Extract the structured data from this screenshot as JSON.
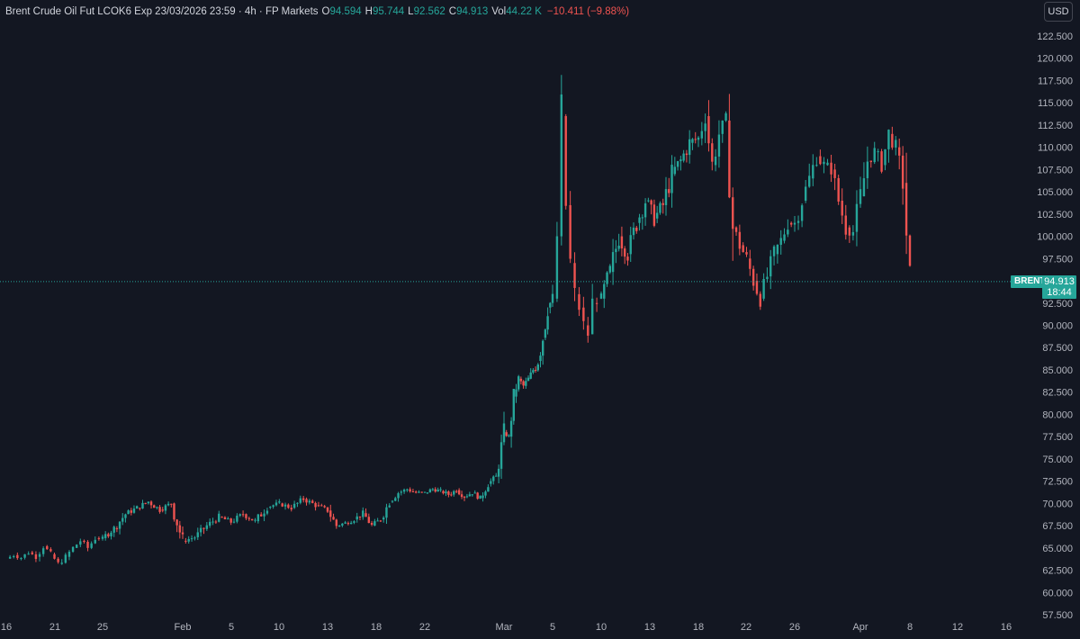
{
  "legend": {
    "title": "Brent Crude Oil Fut LCOK6 Exp 23/03/2026 23:59 · 4h · FP Markets",
    "open_label": "O",
    "open": "94.594",
    "high_label": "H",
    "high": "95.744",
    "low_label": "L",
    "low": "92.562",
    "close_label": "C",
    "close": "94.913",
    "vol_label": "Vol",
    "vol": "44.22 K",
    "change": "−10.411 (−9.88%)"
  },
  "currency": "USD",
  "last_price": {
    "symbol": "BRENT",
    "price": "94.913",
    "countdown": "18:44"
  },
  "colors": {
    "background": "#131722",
    "up": "#26a69a",
    "down": "#ef5350",
    "grid": "#1e222d",
    "text": "#d1d4dc"
  },
  "event_icons": [
    "us-flag-icon",
    "us-flag-icon",
    "us-flag-icon",
    "us-flag-icon"
  ],
  "chart_data": {
    "type": "candlestick",
    "y_ticks": [
      "122.500",
      "120.000",
      "117.500",
      "115.000",
      "112.500",
      "110.000",
      "107.500",
      "105.000",
      "102.500",
      "100.000",
      "97.500",
      "95.000",
      "92.500",
      "90.000",
      "87.500",
      "85.000",
      "82.500",
      "80.000",
      "77.500",
      "75.000",
      "72.500",
      "70.000",
      "67.500",
      "65.000",
      "62.500",
      "60.000",
      "57.500"
    ],
    "ylim": [
      57.5,
      122.5
    ],
    "x_ticks": [
      "16",
      "21",
      "25",
      "Feb",
      "5",
      "10",
      "13",
      "18",
      "22",
      "Mar",
      "5",
      "10",
      "13",
      "18",
      "22",
      "26",
      "Apr",
      "8",
      "12",
      "16"
    ],
    "last_price": 94.913,
    "segments": [
      {
        "from": "16",
        "to": "25",
        "values": [
          63.8,
          64.2,
          63.9,
          64.5,
          64.0,
          65.2,
          64.3,
          63.2,
          64.0,
          65.0,
          65.8,
          65.0,
          66.1
        ]
      },
      {
        "from": "25",
        "to": "Feb",
        "values": [
          66.1,
          67.2,
          68.8,
          69.5,
          70.2,
          69.3,
          70.0
        ]
      },
      {
        "from": "Feb",
        "to": "13",
        "values": [
          65.8,
          66.2,
          67.5,
          68.5,
          67.9,
          68.8,
          68.0,
          69.6,
          70.0,
          69.5,
          70.5,
          69.8
        ]
      },
      {
        "from": "13",
        "to": "22",
        "values": [
          69.2,
          67.5,
          67.8,
          68.2,
          68.9,
          67.5,
          68.2,
          70.2,
          71.2,
          71.6,
          71.2
        ]
      },
      {
        "from": "22",
        "to": "Mar",
        "values": [
          71.2,
          71.6,
          71.4,
          71.0,
          71.5,
          70.8,
          71.2,
          70.6,
          72.2,
          73.0
        ]
      },
      {
        "from": "Mar",
        "to": "5",
        "values": [
          78.0,
          77.5,
          82.0,
          84.0,
          83.2,
          84.0,
          85.0,
          86.0,
          88.6,
          92.0
        ]
      },
      {
        "from": "5",
        "to": "10",
        "values": [
          93.0,
          100.0,
          113.5,
          103.5,
          97.0,
          93.5,
          92.0,
          90.0,
          89.0,
          92.5,
          93.0
        ]
      },
      {
        "from": "10",
        "to": "18",
        "values": [
          93.0,
          96.0,
          100.0,
          98.0,
          101.5,
          104.0,
          102.0,
          103.5,
          107.0,
          108.5,
          110.5
        ]
      },
      {
        "from": "18",
        "to": "26",
        "values": [
          111.0,
          113.5,
          108.0,
          111.5,
          113.0,
          101.0,
          99.0,
          97.5,
          95.0,
          93.0,
          95.5,
          98.0,
          99.5,
          101.5
        ]
      },
      {
        "from": "26",
        "to": "Apr",
        "values": [
          101.5,
          104.0,
          106.5,
          109.0,
          108.0,
          107.5,
          104.0,
          101.0,
          100.5
        ]
      },
      {
        "from": "Apr",
        "to": "8",
        "values": [
          104.5,
          108.5,
          109.5,
          108.0,
          111.5,
          110.0,
          106.0
        ]
      },
      {
        "from": "8",
        "to": "8",
        "values": [
          94.913
        ]
      }
    ]
  }
}
